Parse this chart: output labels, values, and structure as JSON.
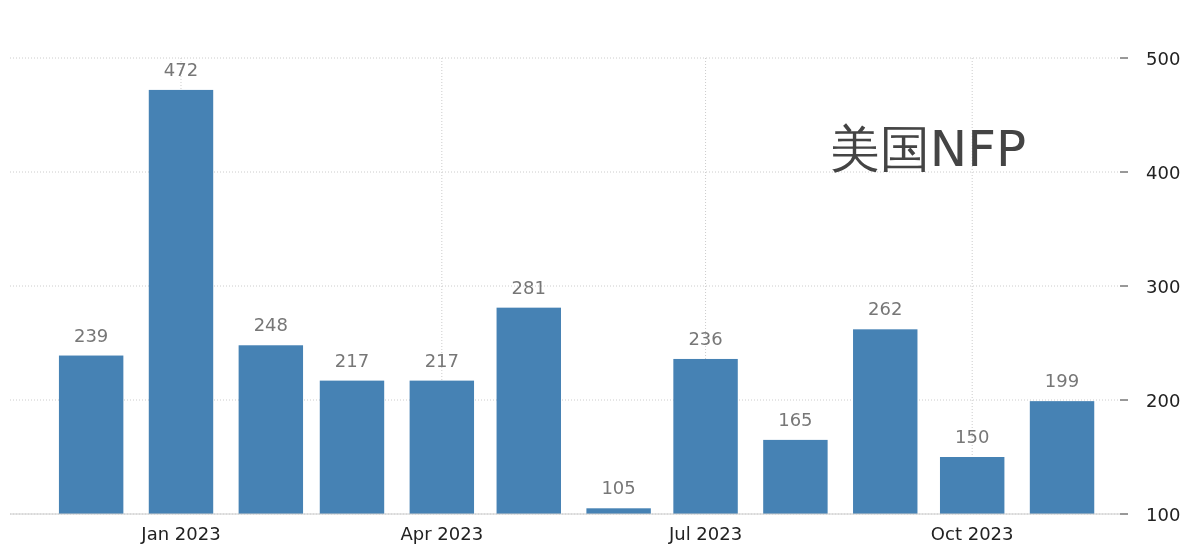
{
  "chart_data": {
    "type": "bar",
    "title": "美国NFP",
    "x": [
      "2022-12",
      "2023-01",
      "2023-02",
      "2023-03",
      "2023-04",
      "2023-05",
      "2023-06",
      "2023-07",
      "2023-08",
      "2023-09",
      "2023-10",
      "2023-11"
    ],
    "values": [
      239,
      472,
      248,
      217,
      217,
      281,
      105,
      236,
      165,
      262,
      150,
      199
    ],
    "color": "#4682b4",
    "data_labels": true,
    "xlim": [
      "2022-11-03",
      "2023-11-21"
    ],
    "xticks": [
      {
        "value": "2023-01",
        "label": "Jan 2023"
      },
      {
        "value": "2023-04",
        "label": "Apr 2023"
      },
      {
        "value": "2023-07",
        "label": "Jul 2023"
      },
      {
        "value": "2023-10",
        "label": "Oct 2023"
      }
    ],
    "ylim": [
      100,
      500
    ],
    "yticks": [
      100,
      200,
      300,
      400,
      500
    ],
    "grid": true
  }
}
